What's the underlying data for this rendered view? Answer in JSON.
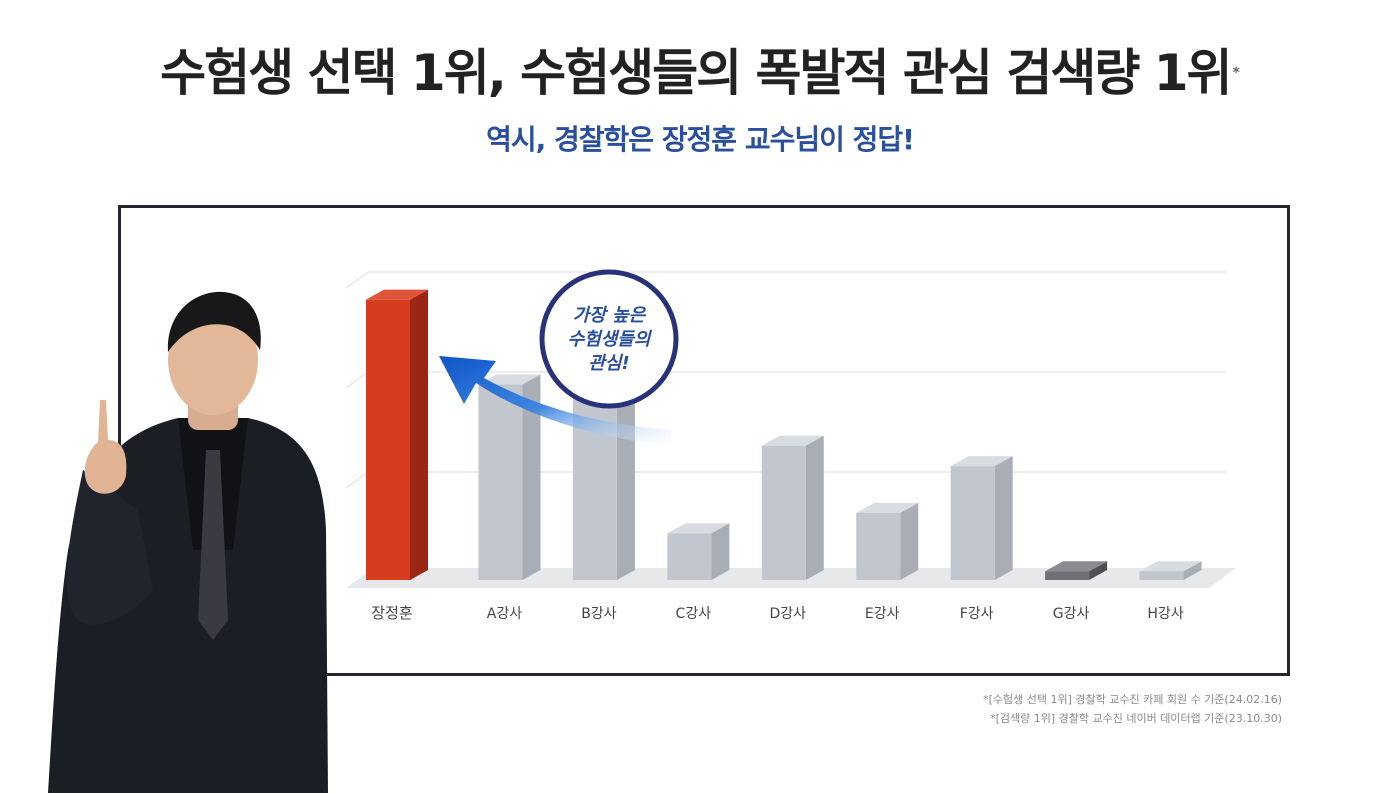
{
  "headline": "수험생 선택 1위, 수험생들의 폭발적 관심 검색량 1위",
  "headline_mark": "*",
  "subline": "역시, 경찰학은 장정훈 교수님이 정답!",
  "callout": [
    "가장 높은",
    "수험생들의",
    "관심!"
  ],
  "notes": [
    "*[수험생 선택 1위] 경찰학 교수진 카페 회원 수 기준(24.02.16)",
    "*[검색량 1위] 경찰학 교수진 네이버 데이터랩 기준(23.10.30)"
  ],
  "colors": {
    "highlight": "#d63c1e",
    "bar": "#c2c6ce",
    "dark_bar": "#6f7075",
    "accent": "#2a4f9e",
    "frame": "#24252d"
  },
  "chart_data": {
    "type": "bar",
    "categories": [
      "장정훈",
      "A강사",
      "B강사",
      "C강사",
      "D강사",
      "E강사",
      "F강사",
      "G강사",
      "H강사"
    ],
    "values": [
      96,
      67,
      65,
      16,
      46,
      23,
      39,
      3,
      3
    ],
    "ylim": [
      0,
      100
    ],
    "grid": true,
    "highlight_index": 0,
    "dark_index": 7
  }
}
